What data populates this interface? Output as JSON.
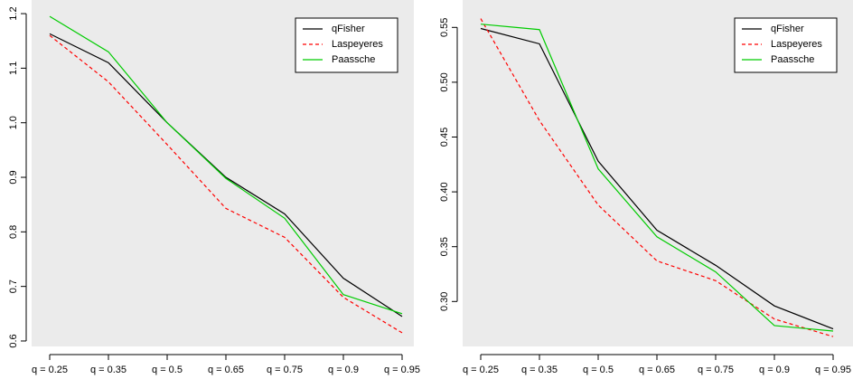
{
  "chart_data": [
    {
      "type": "line",
      "categories": [
        "q = 0.25",
        "q = 0.35",
        "q = 0.5",
        "q = 0.65",
        "q = 0.75",
        "q = 0.9",
        "q = 0.95"
      ],
      "series": [
        {
          "name": "qFisher",
          "color": "#000000",
          "linestyle": "solid",
          "values": [
            1.163,
            1.11,
            1.0,
            0.9,
            0.833,
            0.715,
            0.645
          ]
        },
        {
          "name": "Laspeyeres",
          "color": "#ff0000",
          "linestyle": "dashed",
          "values": [
            1.16,
            1.075,
            0.96,
            0.843,
            0.79,
            0.68,
            0.615
          ]
        },
        {
          "name": "Paassche",
          "color": "#00cc00",
          "linestyle": "solid",
          "values": [
            1.195,
            1.13,
            1.0,
            0.898,
            0.825,
            0.685,
            0.65
          ]
        }
      ],
      "ylim": [
        0.59,
        1.225
      ],
      "yticks": [
        0.6,
        0.7,
        0.8,
        0.9,
        {
          "value": 1,
          "label": "1.0"
        },
        1.1,
        1.2
      ],
      "legend": "topright"
    },
    {
      "type": "line",
      "categories": [
        "q = 0.25",
        "q = 0.35",
        "q = 0.5",
        "q = 0.65",
        "q = 0.75",
        "q = 0.9",
        "q = 0.95"
      ],
      "series": [
        {
          "name": "qFisher",
          "color": "#000000",
          "linestyle": "solid",
          "values": [
            0.549,
            0.535,
            0.428,
            0.365,
            0.333,
            0.296,
            0.275
          ]
        },
        {
          "name": "Laspeyeres",
          "color": "#ff0000",
          "linestyle": "dashed",
          "values": [
            0.558,
            0.465,
            0.388,
            0.337,
            0.319,
            0.284,
            0.268
          ]
        },
        {
          "name": "Paassche",
          "color": "#00cc00",
          "linestyle": "solid",
          "values": [
            0.553,
            0.548,
            0.421,
            0.359,
            0.327,
            0.278,
            0.273
          ]
        }
      ],
      "ylim": [
        0.259,
        0.575
      ],
      "yticks": [
        {
          "value": 0.3,
          "label": "0.30"
        },
        0.35,
        {
          "value": 0.4,
          "label": "0.40"
        },
        0.45,
        {
          "value": 0.5,
          "label": "0.50"
        },
        0.55
      ],
      "legend": "topright"
    }
  ]
}
